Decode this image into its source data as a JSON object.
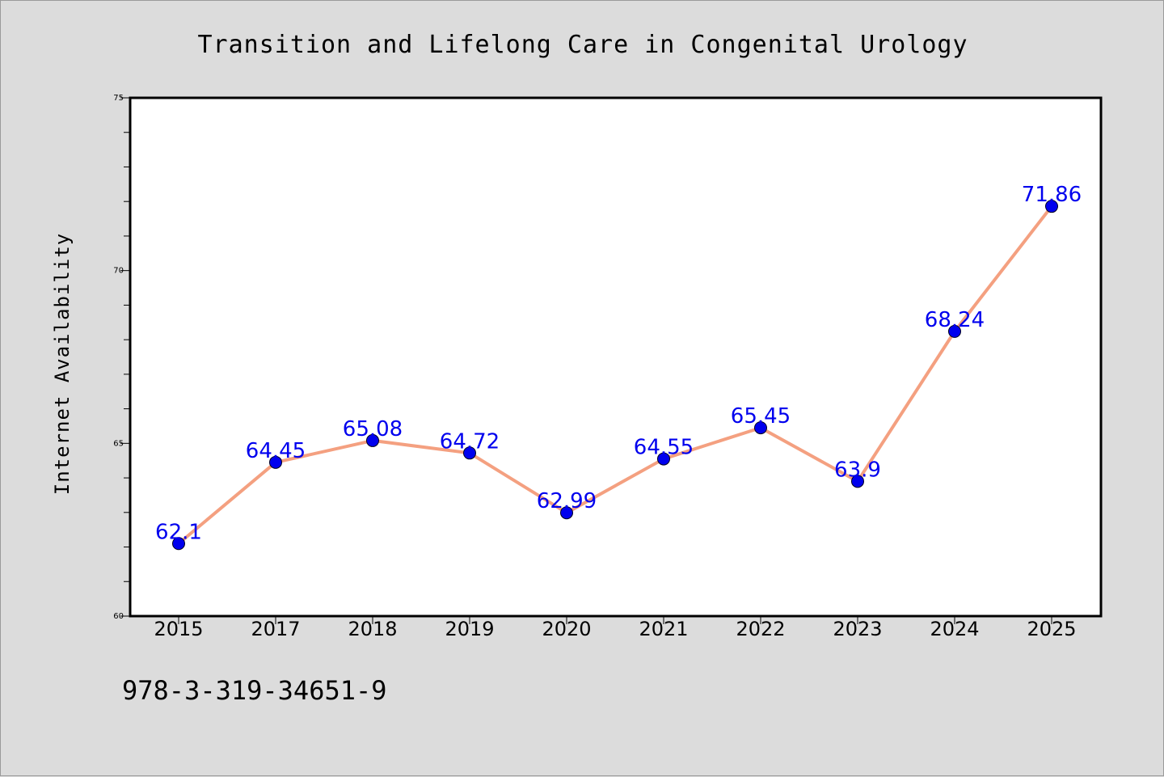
{
  "chart_data": {
    "type": "line",
    "title": "Transition and Lifelong Care in Congenital Urology",
    "xlabel": "",
    "ylabel": "Internet Availability",
    "categories": [
      "2015",
      "2017",
      "2018",
      "2019",
      "2020",
      "2021",
      "2022",
      "2023",
      "2024",
      "2025"
    ],
    "series": [
      {
        "values": [
          62.1,
          64.45,
          65.08,
          64.72,
          62.99,
          64.55,
          65.45,
          63.9,
          68.24,
          71.86
        ],
        "labels": [
          "62.1",
          "64.45",
          "65.08",
          "64.72",
          "62.99",
          "64.55",
          "65.45",
          "63.9",
          "68.24",
          "71.86"
        ],
        "line_color": "#f4a080",
        "marker_color": "#0000ee",
        "label_color": "#0000ee"
      }
    ],
    "ylim": [
      60,
      75
    ],
    "yticks": [
      60,
      65,
      70,
      75
    ],
    "ytick_labels": [
      "60",
      "65",
      "70",
      "75"
    ],
    "grid": false,
    "legend": "none"
  },
  "footer": {
    "isbn": "978-3-319-34651-9"
  },
  "colors": {
    "background": "#dcdcdc",
    "plot_area": "#ffffff",
    "axis": "#000000"
  }
}
